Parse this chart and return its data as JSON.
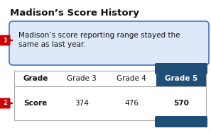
{
  "title": "Madison’s Score History",
  "callout_text_line1": "Madison’s score reporting range stayed the",
  "callout_text_line2": "same as last year.",
  "table_headers": [
    "Grade",
    "Grade 3",
    "Grade 4",
    "Grade 5"
  ],
  "table_row_label": "Score",
  "table_values": [
    "374",
    "476",
    "570"
  ],
  "bg_color": "#ffffff",
  "outer_border_color": "#aaaaaa",
  "callout_bg": "#dde8f8",
  "callout_border": "#4472c4",
  "table_border_color": "#aaaaaa",
  "highlight_col_bg": "#1f4e79",
  "label_bg": "#cc0000",
  "label1_text": "1",
  "label2_text": "2",
  "title_fontsize": 9.5,
  "callout_fontsize": 7.5,
  "table_fontsize": 7.5,
  "fig_width": 2.97,
  "fig_height": 1.88,
  "dpi": 100
}
